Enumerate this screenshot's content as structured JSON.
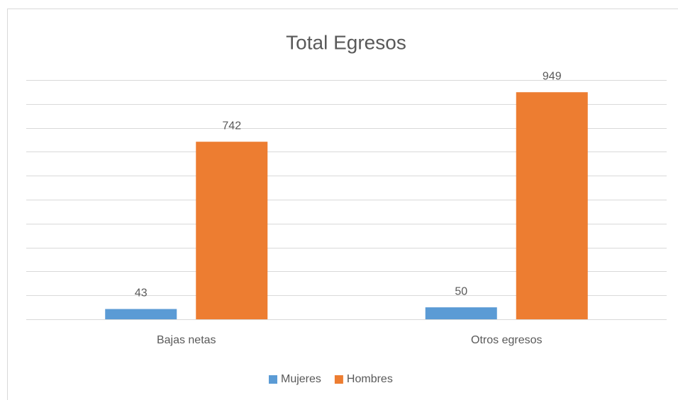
{
  "chart_data": {
    "type": "bar",
    "title": "Total Egresos",
    "categories": [
      "Bajas netas",
      "Otros egresos"
    ],
    "series": [
      {
        "name": "Mujeres",
        "color": "#5b9bd5",
        "values": [
          43,
          50
        ]
      },
      {
        "name": "Hombres",
        "color": "#ed7d31",
        "values": [
          742,
          949
        ]
      }
    ],
    "ylim": [
      0,
      1000
    ],
    "yticks": [
      0,
      100,
      200,
      300,
      400,
      500,
      600,
      700,
      800,
      900,
      1000
    ],
    "grid": true,
    "legend": "bottom"
  }
}
